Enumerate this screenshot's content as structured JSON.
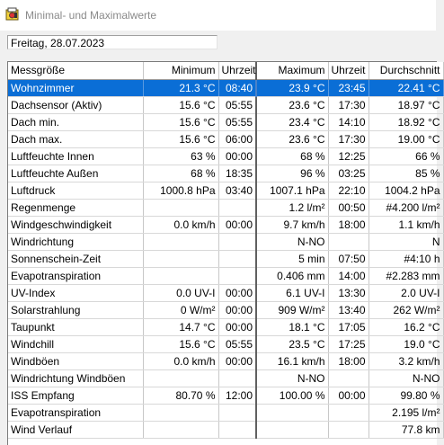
{
  "window": {
    "title": "Minimal- und Maximalwerte"
  },
  "date_field": {
    "value": "Freitag, 28.07.2023"
  },
  "table": {
    "headers": [
      "Messgröße",
      "Minimum",
      "Uhrzeit",
      "Maximum",
      "Uhrzeit",
      "Durchschnitt"
    ],
    "rows": [
      [
        "Wohnzimmer",
        "21.3 °C",
        "08:40",
        "23.9 °C",
        "23:45",
        "22.41 °C"
      ],
      [
        "Dachsensor (Aktiv)",
        "15.6 °C",
        "05:55",
        "23.6 °C",
        "17:30",
        "18.97 °C"
      ],
      [
        "Dach min.",
        "15.6 °C",
        "05:55",
        "23.4 °C",
        "14:10",
        "18.92 °C"
      ],
      [
        "Dach max.",
        "15.6 °C",
        "06:00",
        "23.6 °C",
        "17:30",
        "19.00 °C"
      ],
      [
        "Luftfeuchte Innen",
        "63 %",
        "00:00",
        "68 %",
        "12:25",
        "66 %"
      ],
      [
        "Luftfeuchte Außen",
        "68 %",
        "18:35",
        "96 %",
        "03:25",
        "85 %"
      ],
      [
        "Luftdruck",
        "1000.8 hPa",
        "03:40",
        "1007.1 hPa",
        "22:10",
        "1004.2 hPa"
      ],
      [
        "Regenmenge",
        "",
        "",
        "1.2 l/m²",
        "00:50",
        "#4.200 l/m²"
      ],
      [
        "Windgeschwindigkeit",
        "0.0 km/h",
        "00:00",
        "9.7 km/h",
        "18:00",
        "1.1 km/h"
      ],
      [
        "Windrichtung",
        "",
        "",
        "N-NO",
        "",
        "N"
      ],
      [
        "Sonnenschein-Zeit",
        "",
        "",
        "5 min",
        "07:50",
        "#4:10 h"
      ],
      [
        "Evapotranspiration",
        "",
        "",
        "0.406 mm",
        "14:00",
        "#2.283 mm"
      ],
      [
        "UV-Index",
        "0.0 UV-I",
        "00:00",
        "6.1 UV-I",
        "13:30",
        "2.0 UV-I"
      ],
      [
        "Solarstrahlung",
        "0 W/m²",
        "00:00",
        "909 W/m²",
        "13:40",
        "262 W/m²"
      ],
      [
        "Taupunkt",
        "14.7 °C",
        "00:00",
        "18.1 °C",
        "17:05",
        "16.2 °C"
      ],
      [
        "Windchill",
        "15.6 °C",
        "05:55",
        "23.5 °C",
        "17:25",
        "19.0 °C"
      ],
      [
        "Windböen",
        "0.0 km/h",
        "00:00",
        "16.1 km/h",
        "18:00",
        "3.2 km/h"
      ],
      [
        "Windrichtung Windböen",
        "",
        "",
        "N-NO",
        "",
        "N-NO"
      ],
      [
        "ISS Empfang",
        "80.70 %",
        "12:00",
        "100.00 %",
        "00:00",
        "99.80 %"
      ],
      [
        "Evapotranspiration",
        "",
        "",
        "",
        "",
        "2.195 l/m²"
      ],
      [
        "Wind Verlauf",
        "",
        "",
        "",
        "",
        "77.8 km"
      ]
    ],
    "selected_row": 0
  }
}
